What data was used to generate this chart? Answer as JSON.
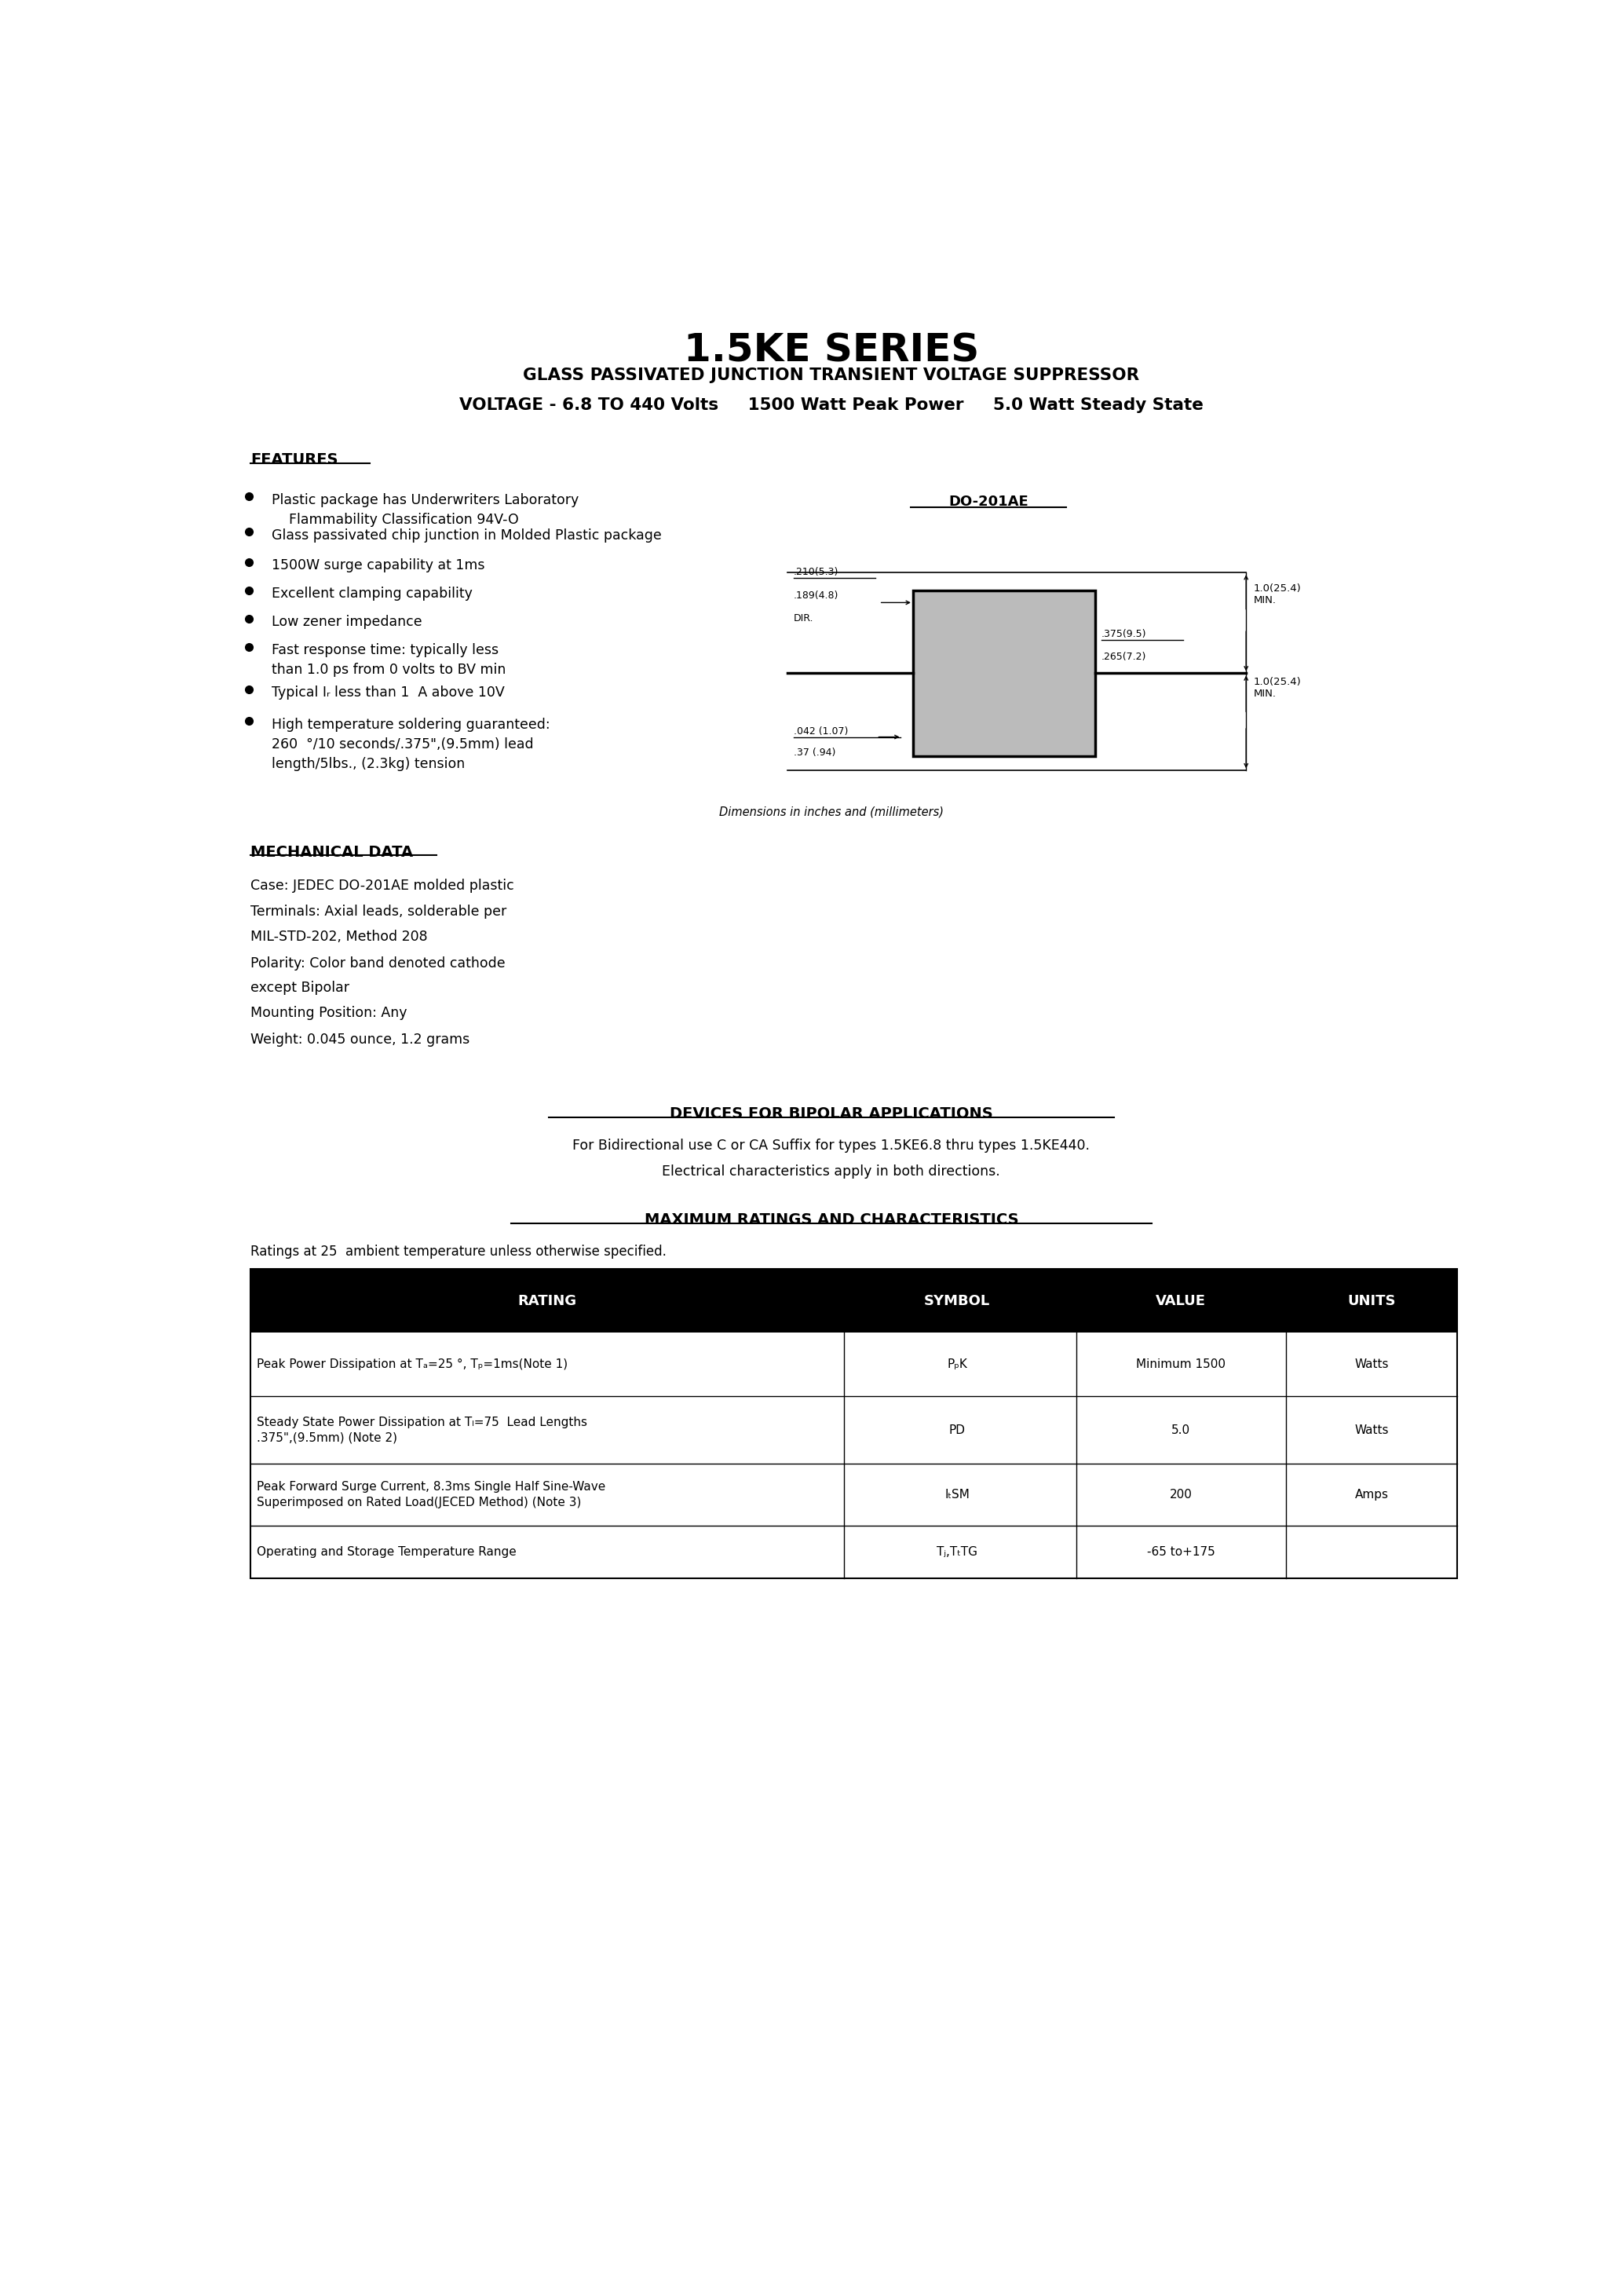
{
  "title": "1.5KE SERIES",
  "subtitle1": "GLASS PASSIVATED JUNCTION TRANSIENT VOLTAGE SUPPRESSOR",
  "subtitle2": "VOLTAGE - 6.8 TO 440 Volts     1500 Watt Peak Power     5.0 Watt Steady State",
  "features_title": "FEATURES",
  "do_label": "DO-201AE",
  "dim_note": "Dimensions in inches and (millimeters)",
  "mech_title": "MECHANICAL DATA",
  "mech_lines": [
    "Case: JEDEC DO-201AE molded plastic",
    "Terminals: Axial leads, solderable per",
    "MIL-STD-202, Method 208",
    "Polarity: Color band denoted cathode",
    "except Bipolar",
    "Mounting Position: Any",
    "Weight: 0.045 ounce, 1.2 grams"
  ],
  "bipolar_title": "DEVICES FOR BIPOLAR APPLICATIONS",
  "bipolar_line1": "For Bidirectional use C or CA Suffix for types 1.5KE6.8 thru types 1.5KE440.",
  "bipolar_line2": "Electrical characteristics apply in both directions.",
  "ratings_title": "MAXIMUM RATINGS AND CHARACTERISTICS",
  "ratings_note": "Ratings at 25  ambient temperature unless otherwise specified.",
  "table_headers": [
    "RATING",
    "SYMBOL",
    "VALUE",
    "UNITS"
  ],
  "bg_color": "#ffffff",
  "text_color": "#000000"
}
